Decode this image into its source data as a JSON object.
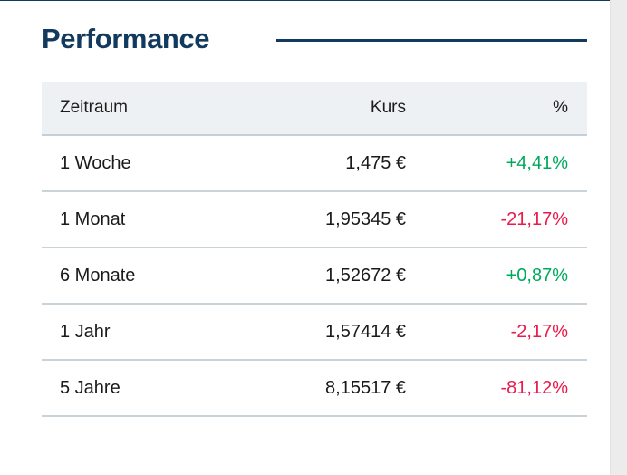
{
  "section": {
    "title": "Performance"
  },
  "table": {
    "headers": [
      "Zeitraum",
      "Kurs",
      "%"
    ],
    "rows": [
      {
        "zeitraum": "1 Woche",
        "kurs": "1,475 €",
        "pct": "+4,41%",
        "trend": "up"
      },
      {
        "zeitraum": "1 Monat",
        "kurs": "1,95345 €",
        "pct": "-21,17%",
        "trend": "down"
      },
      {
        "zeitraum": "6 Monate",
        "kurs": "1,52672 €",
        "pct": "+0,87%",
        "trend": "up"
      },
      {
        "zeitraum": "1 Jahr",
        "kurs": "1,57414 €",
        "pct": "-2,17%",
        "trend": "down"
      },
      {
        "zeitraum": "5 Jahre",
        "kurs": "8,15517 €",
        "pct": "-81,12%",
        "trend": "down"
      }
    ]
  },
  "colors": {
    "accent": "#12395E",
    "positive": "#00A95C",
    "negative": "#EA1A4B",
    "header_bg": "#EDF1F4",
    "divider": "#C8D3DA"
  }
}
